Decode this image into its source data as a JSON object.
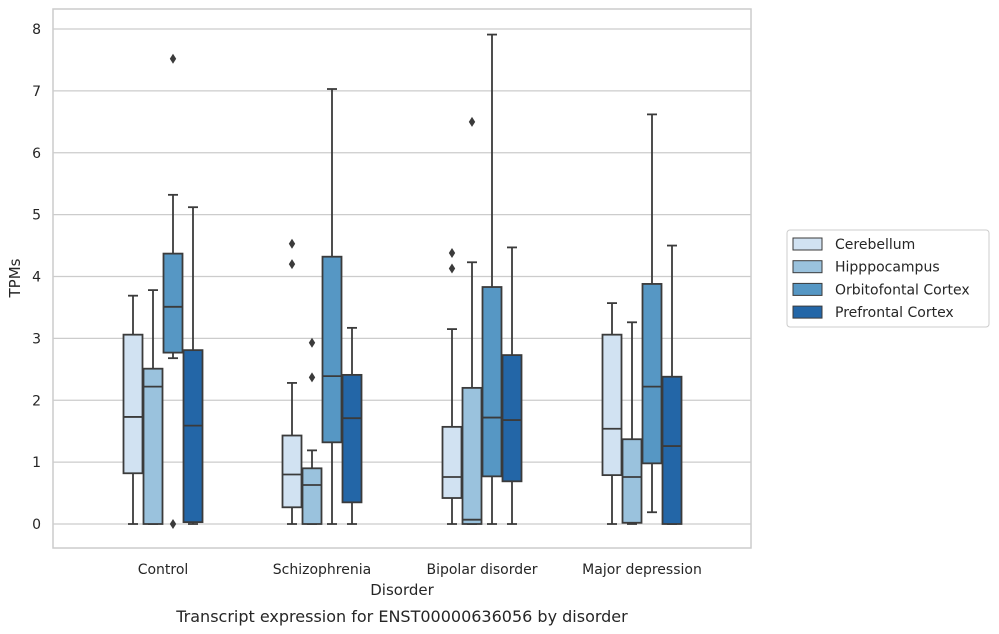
{
  "chart_data": {
    "type": "box",
    "xlabel": "Disorder",
    "ylabel": "TPMs",
    "caption": "Transcript expression for ENST00000636056 by disorder",
    "ylim": [
      -0.4,
      8.35
    ],
    "yticks": [
      "0",
      "1",
      "2",
      "3",
      "4",
      "5",
      "6",
      "7",
      "8"
    ],
    "grid": "horizontal",
    "legend_position": "right",
    "categories": [
      "Control",
      "Schizophrenia",
      "Bipolar disorder",
      "Major depression"
    ],
    "series": [
      {
        "name": "Cerebellum",
        "color": "#d1e2f2",
        "boxes": [
          {
            "whislo": 0,
            "q1": 0.82,
            "med": 1.73,
            "q3": 3.06,
            "whishi": 3.69,
            "fliers": []
          },
          {
            "whislo": 0,
            "q1": 0.27,
            "med": 0.8,
            "q3": 1.43,
            "whishi": 2.28,
            "fliers": [
              4.2,
              4.53
            ]
          },
          {
            "whislo": 0,
            "q1": 0.42,
            "med": 0.76,
            "q3": 1.57,
            "whishi": 3.15,
            "fliers": [
              4.13,
              4.38
            ]
          },
          {
            "whislo": 0,
            "q1": 0.79,
            "med": 1.54,
            "q3": 3.06,
            "whishi": 3.57,
            "fliers": []
          }
        ]
      },
      {
        "name": "Hipppocampus",
        "color": "#9ac2dd",
        "boxes": [
          {
            "whislo": 0,
            "q1": 0,
            "med": 2.22,
            "q3": 2.51,
            "whishi": 3.78,
            "fliers": []
          },
          {
            "whislo": 0,
            "q1": 0,
            "med": 0.63,
            "q3": 0.9,
            "whishi": 1.19,
            "fliers": [
              2.37,
              2.93
            ]
          },
          {
            "whislo": 0,
            "q1": 0,
            "med": 0.07,
            "q3": 2.2,
            "whishi": 4.23,
            "fliers": [
              6.5
            ]
          },
          {
            "whislo": 0,
            "q1": 0.02,
            "med": 0.76,
            "q3": 1.37,
            "whishi": 3.26,
            "fliers": []
          }
        ]
      },
      {
        "name": "Orbitofontal Cortex",
        "color": "#5697c4",
        "boxes": [
          {
            "whislo": 2.68,
            "q1": 2.77,
            "med": 3.51,
            "q3": 4.37,
            "whishi": 5.32,
            "fliers": [
              7.52,
              0
            ]
          },
          {
            "whislo": 0,
            "q1": 1.32,
            "med": 2.39,
            "q3": 4.32,
            "whishi": 7.03,
            "fliers": []
          },
          {
            "whislo": 0,
            "q1": 0.77,
            "med": 1.72,
            "q3": 3.83,
            "whishi": 7.91,
            "fliers": []
          },
          {
            "whislo": 0.19,
            "q1": 0.98,
            "med": 2.22,
            "q3": 3.88,
            "whishi": 6.62,
            "fliers": []
          }
        ]
      },
      {
        "name": "Prefrontal Cortex",
        "color": "#2366a7",
        "boxes": [
          {
            "whislo": 0,
            "q1": 0.03,
            "med": 1.59,
            "q3": 2.81,
            "whishi": 5.12,
            "fliers": []
          },
          {
            "whislo": 0,
            "q1": 0.35,
            "med": 1.71,
            "q3": 2.41,
            "whishi": 3.17,
            "fliers": []
          },
          {
            "whislo": 0,
            "q1": 0.69,
            "med": 1.68,
            "q3": 2.73,
            "whishi": 4.47,
            "fliers": []
          },
          {
            "whislo": 0,
            "q1": 0,
            "med": 1.26,
            "q3": 2.38,
            "whishi": 4.5,
            "fliers": []
          }
        ]
      }
    ]
  }
}
